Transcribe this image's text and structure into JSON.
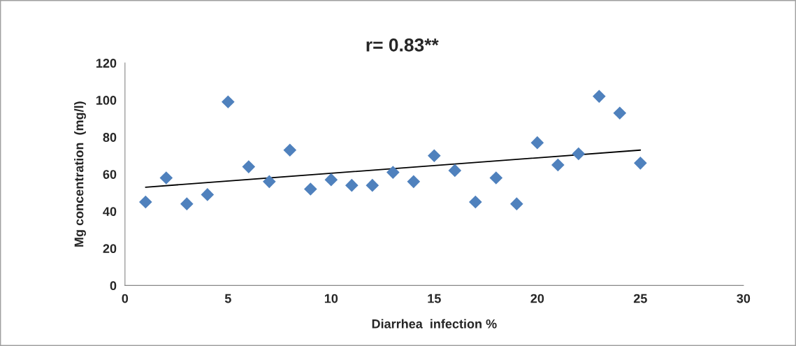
{
  "chart_data": {
    "type": "scatter",
    "title": "r= 0.83**",
    "xlabel": "Diarrhea  infection %",
    "ylabel": "Mg concentration  (mg/l)",
    "x": [
      1,
      2,
      3,
      4,
      5,
      6,
      7,
      8,
      9,
      10,
      11,
      12,
      13,
      14,
      15,
      16,
      17,
      18,
      19,
      20,
      21,
      22,
      23,
      24,
      25
    ],
    "series": [
      {
        "color": "#4f81bd",
        "marker": "diamond",
        "values": [
          45,
          58,
          44,
          49,
          99,
          64,
          56,
          73,
          52,
          57,
          54,
          54,
          61,
          56,
          70,
          62,
          45,
          58,
          44,
          77,
          65,
          71,
          102,
          93,
          66
        ]
      },
      {
        "type": "line",
        "color": "#000000",
        "marker": "none",
        "line_style": "solid",
        "x": [
          1,
          25
        ],
        "values": [
          53,
          73
        ]
      }
    ],
    "xlim": [
      0,
      30
    ],
    "xticks": [
      0,
      5,
      10,
      15,
      20,
      25,
      30
    ],
    "ylim": [
      0,
      120
    ],
    "yticks": [
      0,
      20,
      40,
      60,
      80,
      100,
      120
    ],
    "grid": false,
    "legend": false
  }
}
